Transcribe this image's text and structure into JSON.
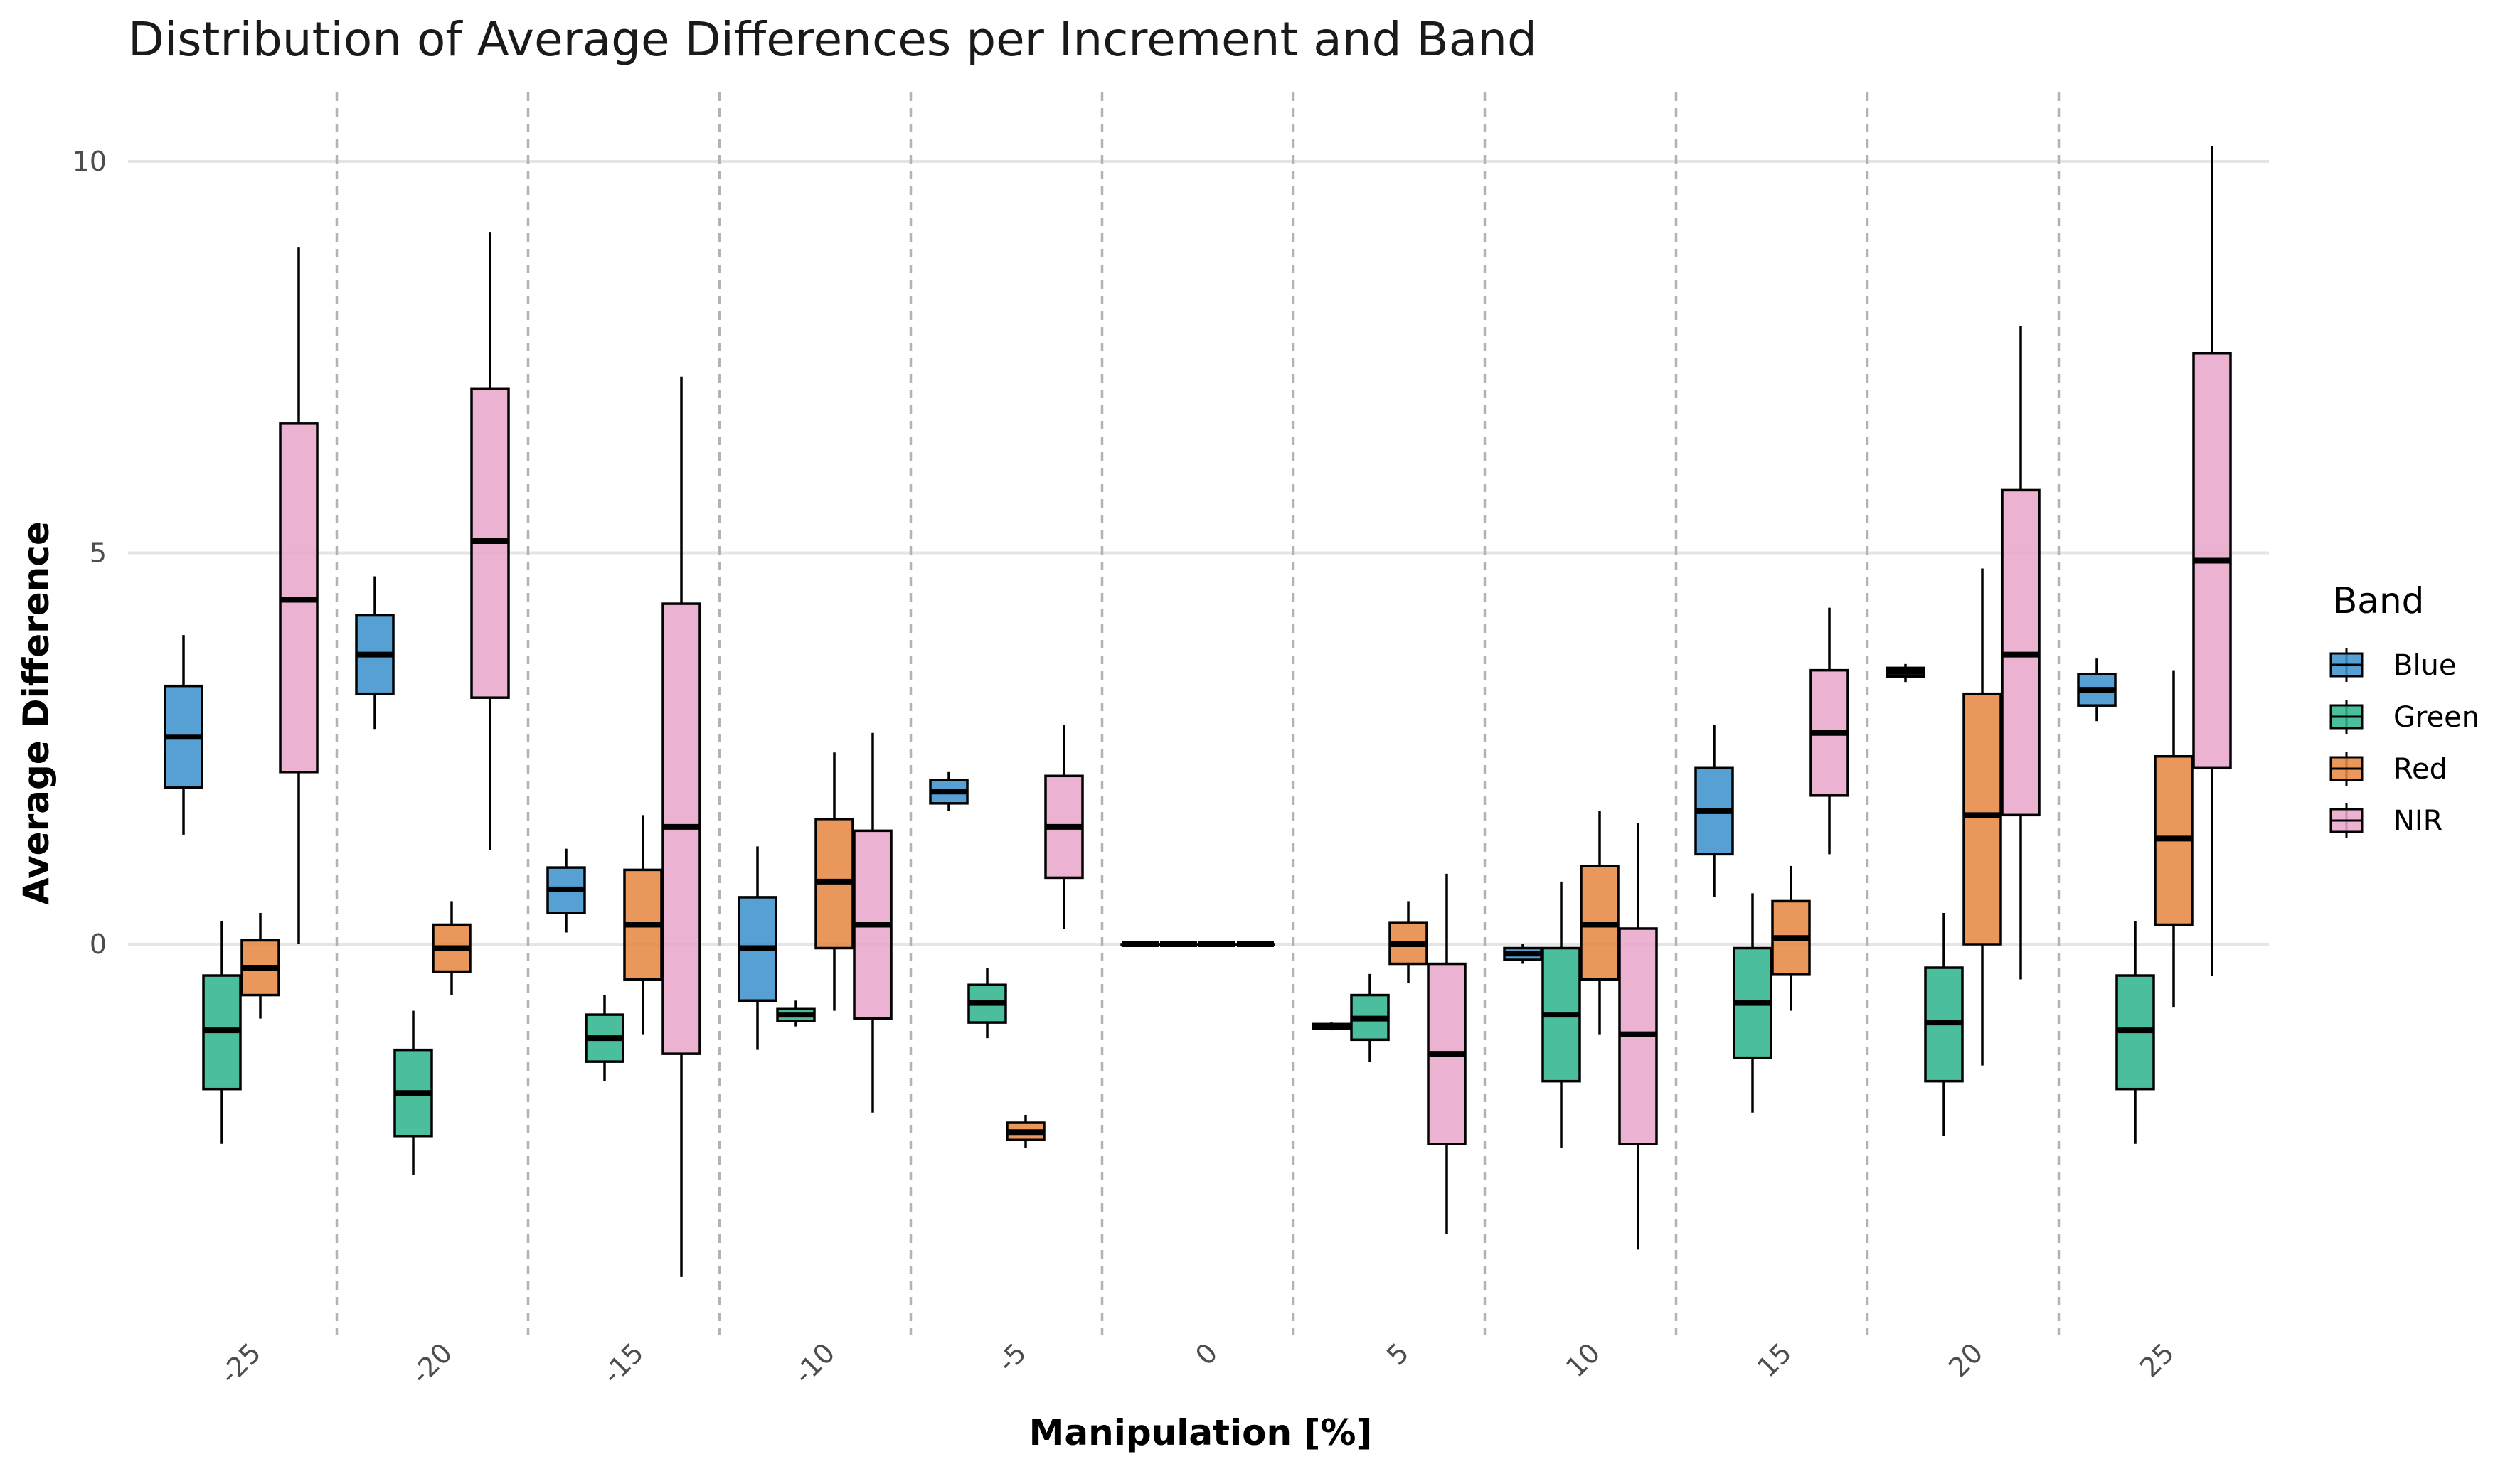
{
  "chart_data": {
    "type": "box",
    "title": "Distribution of Average Differences per Increment and Band",
    "xlabel": "Manipulation [%]",
    "ylabel": "Average Difference",
    "categories": [
      "-25",
      "-20",
      "-15",
      "-10",
      "-5",
      "0",
      "5",
      "10",
      "15",
      "20",
      "25"
    ],
    "y_ticks": [
      0,
      5,
      10
    ],
    "ylim": [
      -4.9,
      10.3
    ],
    "grid": true,
    "legend": {
      "title": "Band",
      "position": "right"
    },
    "series": [
      {
        "name": "Blue",
        "color": "#3A8FCB",
        "boxes": [
          {
            "whisker_low": 1.4,
            "q1": 2.0,
            "median": 2.65,
            "q3": 3.3,
            "whisker_high": 3.95
          },
          {
            "whisker_low": 2.75,
            "q1": 3.2,
            "median": 3.7,
            "q3": 4.2,
            "whisker_high": 4.7
          },
          {
            "whisker_low": 0.15,
            "q1": 0.4,
            "median": 0.7,
            "q3": 0.98,
            "whisker_high": 1.22
          },
          {
            "whisker_low": -1.35,
            "q1": -0.72,
            "median": -0.05,
            "q3": 0.6,
            "whisker_high": 1.25
          },
          {
            "whisker_low": 1.7,
            "q1": 1.8,
            "median": 1.95,
            "q3": 2.1,
            "whisker_high": 2.2
          },
          {
            "whisker_low": 0,
            "q1": 0,
            "median": 0,
            "q3": 0,
            "whisker_high": 0
          },
          {
            "whisker_low": -1.1,
            "q1": -1.08,
            "median": -1.05,
            "q3": -1.02,
            "whisker_high": -1.0
          },
          {
            "whisker_low": -0.25,
            "q1": -0.2,
            "median": -0.12,
            "q3": -0.05,
            "whisker_high": 0.0
          },
          {
            "whisker_low": 0.6,
            "q1": 1.15,
            "median": 1.7,
            "q3": 2.25,
            "whisker_high": 2.8
          },
          {
            "whisker_low": 3.35,
            "q1": 3.42,
            "median": 3.48,
            "q3": 3.53,
            "whisker_high": 3.58
          },
          {
            "whisker_low": 2.85,
            "q1": 3.05,
            "median": 3.25,
            "q3": 3.45,
            "whisker_high": 3.65
          }
        ]
      },
      {
        "name": "Green",
        "color": "#2BB48C",
        "boxes": [
          {
            "whisker_low": -2.55,
            "q1": -1.85,
            "median": -1.1,
            "q3": -0.4,
            "whisker_high": 0.3
          },
          {
            "whisker_low": -2.95,
            "q1": -2.45,
            "median": -1.9,
            "q3": -1.35,
            "whisker_high": -0.85
          },
          {
            "whisker_low": -1.75,
            "q1": -1.5,
            "median": -1.2,
            "q3": -0.9,
            "whisker_high": -0.65
          },
          {
            "whisker_low": -1.05,
            "q1": -0.98,
            "median": -0.9,
            "q3": -0.82,
            "whisker_high": -0.72
          },
          {
            "whisker_low": -1.2,
            "q1": -1.0,
            "median": -0.75,
            "q3": -0.52,
            "whisker_high": -0.3
          },
          {
            "whisker_low": 0,
            "q1": 0,
            "median": 0,
            "q3": 0,
            "whisker_high": 0
          },
          {
            "whisker_low": -1.5,
            "q1": -1.22,
            "median": -0.95,
            "q3": -0.65,
            "whisker_high": -0.38
          },
          {
            "whisker_low": -2.6,
            "q1": -1.75,
            "median": -0.9,
            "q3": -0.05,
            "whisker_high": 0.8
          },
          {
            "whisker_low": -2.15,
            "q1": -1.45,
            "median": -0.75,
            "q3": -0.05,
            "whisker_high": 0.65
          },
          {
            "whisker_low": -2.45,
            "q1": -1.75,
            "median": -1.0,
            "q3": -0.3,
            "whisker_high": 0.4
          },
          {
            "whisker_low": -2.55,
            "q1": -1.85,
            "median": -1.1,
            "q3": -0.4,
            "whisker_high": 0.3
          }
        ]
      },
      {
        "name": "Red",
        "color": "#E6853E",
        "boxes": [
          {
            "whisker_low": -0.95,
            "q1": -0.65,
            "median": -0.3,
            "q3": 0.05,
            "whisker_high": 0.4
          },
          {
            "whisker_low": -0.65,
            "q1": -0.35,
            "median": -0.05,
            "q3": 0.25,
            "whisker_high": 0.55
          },
          {
            "whisker_low": -1.15,
            "q1": -0.45,
            "median": 0.25,
            "q3": 0.95,
            "whisker_high": 1.65
          },
          {
            "whisker_low": -0.85,
            "q1": -0.05,
            "median": 0.8,
            "q3": 1.6,
            "whisker_high": 2.45
          },
          {
            "whisker_low": -2.6,
            "q1": -2.5,
            "median": -2.4,
            "q3": -2.28,
            "whisker_high": -2.18
          },
          {
            "whisker_low": 0,
            "q1": 0,
            "median": 0,
            "q3": 0,
            "whisker_high": 0
          },
          {
            "whisker_low": -0.5,
            "q1": -0.25,
            "median": 0.0,
            "q3": 0.28,
            "whisker_high": 0.55
          },
          {
            "whisker_low": -1.15,
            "q1": -0.45,
            "median": 0.25,
            "q3": 1.0,
            "whisker_high": 1.7
          },
          {
            "whisker_low": -0.85,
            "q1": -0.38,
            "median": 0.08,
            "q3": 0.55,
            "whisker_high": 1.0
          },
          {
            "whisker_low": -1.55,
            "q1": 0.0,
            "median": 1.65,
            "q3": 3.2,
            "whisker_high": 4.8
          },
          {
            "whisker_low": -0.8,
            "q1": 0.25,
            "median": 1.35,
            "q3": 2.4,
            "whisker_high": 3.5
          }
        ]
      },
      {
        "name": "NIR",
        "color": "#E7A5C9",
        "boxes": [
          {
            "whisker_low": 0.0,
            "q1": 2.2,
            "median": 4.4,
            "q3": 6.65,
            "whisker_high": 8.9
          },
          {
            "whisker_low": 1.2,
            "q1": 3.15,
            "median": 5.15,
            "q3": 7.1,
            "whisker_high": 9.1
          },
          {
            "whisker_low": -4.25,
            "q1": -1.4,
            "median": 1.5,
            "q3": 4.35,
            "whisker_high": 7.25
          },
          {
            "whisker_low": -2.15,
            "q1": -0.95,
            "median": 0.25,
            "q3": 1.45,
            "whisker_high": 2.7
          },
          {
            "whisker_low": 0.2,
            "q1": 0.85,
            "median": 1.5,
            "q3": 2.15,
            "whisker_high": 2.8
          },
          {
            "whisker_low": 0,
            "q1": 0,
            "median": 0,
            "q3": 0,
            "whisker_high": 0
          },
          {
            "whisker_low": -3.7,
            "q1": -2.55,
            "median": -1.4,
            "q3": -0.25,
            "whisker_high": 0.9
          },
          {
            "whisker_low": -3.9,
            "q1": -2.55,
            "median": -1.15,
            "q3": 0.2,
            "whisker_high": 1.55
          },
          {
            "whisker_low": 1.15,
            "q1": 1.9,
            "median": 2.7,
            "q3": 3.5,
            "whisker_high": 4.3
          },
          {
            "whisker_low": -0.45,
            "q1": 1.65,
            "median": 3.7,
            "q3": 5.8,
            "whisker_high": 7.9
          },
          {
            "whisker_low": -0.4,
            "q1": 2.25,
            "median": 4.9,
            "q3": 7.55,
            "whisker_high": 10.2
          }
        ]
      }
    ]
  }
}
